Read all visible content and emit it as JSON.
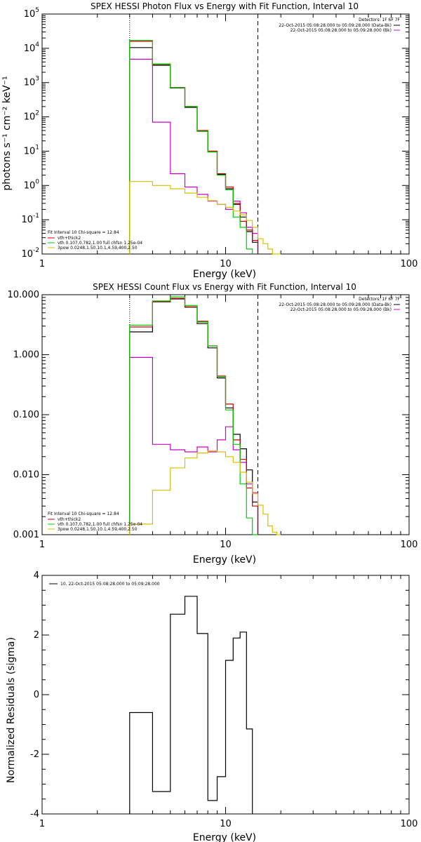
{
  "chart_data": [
    {
      "type": "line",
      "title": "SPEX HESSI Photon Flux vs Energy with Fit Function, Interval 10",
      "xlabel": "Energy (keV)",
      "ylabel": "photons s⁻¹ cm⁻² keV⁻¹",
      "xlim": [
        1,
        100
      ],
      "ylim": [
        0.01,
        100000
      ],
      "xscale": "log",
      "yscale": "log",
      "x_ticks": [
        {
          "v": 1,
          "label": "1"
        },
        {
          "v": 10,
          "label": "10"
        },
        {
          "v": 100,
          "label": "100"
        }
      ],
      "y_ticks": [
        {
          "v": 0.01,
          "base": "10",
          "exp": "-2"
        },
        {
          "v": 0.1,
          "base": "10",
          "exp": "-1"
        },
        {
          "v": 1,
          "base": "10",
          "exp": "0"
        },
        {
          "v": 10,
          "base": "10",
          "exp": "1"
        },
        {
          "v": 100,
          "base": "10",
          "exp": "2"
        },
        {
          "v": 1000,
          "base": "10",
          "exp": "3"
        },
        {
          "v": 10000,
          "base": "10",
          "exp": "4"
        },
        {
          "v": 100000,
          "base": "10",
          "exp": "5"
        }
      ],
      "bin_edges": [
        3,
        4,
        5,
        6,
        7,
        8,
        9,
        10,
        11,
        12,
        13,
        14,
        15,
        16,
        17,
        18,
        19,
        20
      ],
      "vlines": [
        {
          "x": 3,
          "style": "dotted"
        },
        {
          "x": 15,
          "style": "dashed"
        }
      ],
      "top_labels": [
        "Detectors: 1F 6F 7F",
        "22-Oct-2015 05:08:28.000 to 05:09:28.000 (Data-Bk)",
        "22-Oct-2015 05:08:28.000 to 05:09:28.000 (Bk)"
      ],
      "legend": {
        "header": "Fit Interval 10    Chi-square = 12.84",
        "entries": [
          {
            "label": "vth+thick2",
            "color": "#cc0000"
          },
          {
            "label": "vth 0.107,0.782,1.00  full chfsn 1.25e-04",
            "color": "#00cc00"
          },
          {
            "label": "3pow 0.0248,1.50,10.1,4.59,400,2.50",
            "color": "#d4c000"
          }
        ]
      },
      "series": [
        {
          "name": "Data-Bk",
          "color": "#000000",
          "values": [
            10500,
            3200,
            700,
            190,
            38,
            9.5,
            2.1,
            0.8,
            0.28,
            0.12,
            0.045,
            0.022
          ]
        },
        {
          "name": "Bk",
          "color": "#cc00cc",
          "values": [
            4800,
            70,
            2.2,
            0.9,
            0.55,
            0.35,
            0.28,
            0.2,
            0.35,
            0.16,
            0.06,
            0.04
          ]
        },
        {
          "name": "vth+thick2",
          "color": "#cc0000",
          "values": [
            16000,
            3400,
            720,
            200,
            40,
            10,
            2.2,
            0.9,
            0.3,
            0.09,
            0.05,
            0.025
          ]
        },
        {
          "name": "vth",
          "color": "#00cc00",
          "values": [
            17000,
            3500,
            720,
            200,
            38,
            9.5,
            2,
            0.75,
            0.12,
            0.06,
            0.014
          ]
        },
        {
          "name": "3pow",
          "color": "#d4c000",
          "values": [
            1.3,
            1.0,
            0.8,
            0.6,
            0.45,
            0.36,
            0.28,
            0.23,
            0.18,
            0.14,
            0.095,
            0.06,
            0.028,
            0.02,
            0.014,
            0.01,
            0.008
          ]
        }
      ]
    },
    {
      "type": "line",
      "title": "SPEX HESSI Count Flux vs Energy with Fit Function, Interval 10",
      "xlabel": "Energy (keV)",
      "ylabel": "",
      "xlim": [
        1,
        100
      ],
      "ylim": [
        0.001,
        10
      ],
      "xscale": "log",
      "yscale": "log",
      "x_ticks": [
        {
          "v": 1,
          "label": "1"
        },
        {
          "v": 10,
          "label": "10"
        },
        {
          "v": 100,
          "label": "100"
        }
      ],
      "y_ticks": [
        {
          "v": 0.001,
          "label": "0.001"
        },
        {
          "v": 0.01,
          "label": "0.010"
        },
        {
          "v": 0.1,
          "label": "0.100"
        },
        {
          "v": 1,
          "label": "1.000"
        },
        {
          "v": 10,
          "label": "10.000"
        }
      ],
      "bin_edges": [
        3,
        4,
        5,
        6,
        7,
        8,
        9,
        10,
        11,
        12,
        13,
        14,
        15,
        16,
        17,
        18,
        19,
        20
      ],
      "vlines": [
        {
          "x": 3,
          "style": "dotted"
        },
        {
          "x": 15,
          "style": "dashed"
        }
      ],
      "top_labels": [
        "Detectors: 1F 6F 7F",
        "22-Oct-2015 05:08:28.000 to 05:09:28.000 (Data-Bk)",
        "22-Oct-2015 05:08:28.000 to 05:09:28.000 (Bk)"
      ],
      "legend": {
        "header": "Fit Interval 10    Chi-square = 12.84",
        "entries": [
          {
            "label": "vth+thick2",
            "color": "#cc0000"
          },
          {
            "label": "vth 0.107,0.782,1.00  full chfsn 1.25e-04",
            "color": "#00cc00"
          },
          {
            "label": "3pow 0.0248,1.50,10.1,4.59,400,2.50",
            "color": "#d4c000"
          }
        ]
      },
      "series": [
        {
          "name": "Data-Bk",
          "color": "#000000",
          "values": [
            2.4,
            7.6,
            8.5,
            6.2,
            3.3,
            1.3,
            0.41,
            0.13,
            0.047,
            0.027,
            0.012,
            0.0035
          ]
        },
        {
          "name": "Bk",
          "color": "#cc00cc",
          "values": [
            0.9,
            0.032,
            0.026,
            0.024,
            0.029,
            0.024,
            0.038,
            0.063,
            0.026,
            0.016,
            0.007,
            0.005
          ]
        },
        {
          "name": "vth+thick2",
          "color": "#cc0000",
          "values": [
            2.9,
            7.7,
            8.7,
            6.3,
            3.6,
            1.4,
            0.44,
            0.15,
            0.038,
            0.018,
            0.006,
            0.003
          ]
        },
        {
          "name": "vth",
          "color": "#00cc00",
          "values": [
            3.1,
            7.9,
            9.2,
            6.6,
            3.5,
            1.4,
            0.43,
            0.12,
            0.032,
            0.007,
            0.0019,
            0.001
          ]
        },
        {
          "name": "3pow",
          "color": "#d4c000",
          "values": [
            0.0015,
            0.0055,
            0.013,
            0.019,
            0.023,
            0.025,
            0.024,
            0.02,
            0.016,
            0.011,
            0.0075,
            0.0048,
            0.0031,
            0.0022,
            0.0014,
            0.0011,
            0.0008
          ]
        }
      ]
    },
    {
      "type": "line",
      "title": "",
      "xlabel": "Energy (keV)",
      "ylabel": "Normalized Residuals (sigma)",
      "xlim": [
        1,
        100
      ],
      "ylim": [
        -4,
        4
      ],
      "xscale": "log",
      "yscale": "linear",
      "x_ticks": [
        {
          "v": 1,
          "label": "1"
        },
        {
          "v": 10,
          "label": "10"
        },
        {
          "v": 100,
          "label": "100"
        }
      ],
      "y_ticks": [
        {
          "v": -4,
          "label": "-4"
        },
        {
          "v": -2,
          "label": "-2"
        },
        {
          "v": 0,
          "label": "0"
        },
        {
          "v": 2,
          "label": "2"
        },
        {
          "v": 4,
          "label": "4"
        }
      ],
      "bin_edges": [
        3,
        4,
        5,
        6,
        7,
        8,
        9,
        10,
        11,
        12,
        13,
        14,
        15
      ],
      "legend": {
        "header": "",
        "entries": [
          {
            "label": "10. 22-Oct-2015 05:08:28.000 to 05:09:28.000",
            "color": "#000000"
          }
        ]
      },
      "series": [
        {
          "name": "",
          "color": "#000000",
          "values": [
            -0.6,
            -3.25,
            2.7,
            3.3,
            2.05,
            -3.55,
            -2.75,
            1.15,
            1.9,
            2.1,
            -1.15
          ]
        }
      ]
    }
  ]
}
